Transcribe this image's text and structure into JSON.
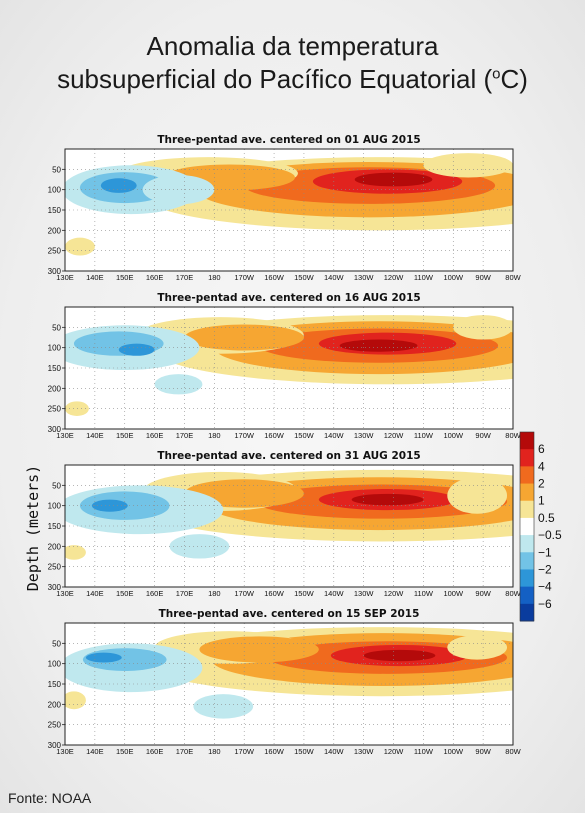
{
  "title_line1": "Anomalia da temperatura",
  "title_line2_prefix": "subsuperficial do Pacífico Equatorial (",
  "title_unit_sup": "o",
  "title_line2_suffix": "C)",
  "source": "Fonte: NOAA",
  "chart_data": {
    "type": "heatmap",
    "ylabel": "Depth (meters)",
    "y_ticks": [
      50,
      100,
      150,
      200,
      250,
      300
    ],
    "ylim": [
      300,
      0
    ],
    "x_ticks": [
      "130E",
      "140E",
      "150E",
      "160E",
      "170E",
      "180",
      "170W",
      "160W",
      "150W",
      "140W",
      "130W",
      "120W",
      "110W",
      "100W",
      "90W",
      "80W"
    ],
    "x_range_deg_east": [
      130,
      280
    ],
    "grid": "dotted",
    "colorbar": {
      "labels": [
        "6",
        "4",
        "2",
        "1",
        "0.5",
        "−0.5",
        "−1",
        "−2",
        "−4",
        "−6"
      ],
      "colors": [
        "#b40a0a",
        "#e1231e",
        "#f06a1e",
        "#f6a632",
        "#f6e596",
        "#ffffff",
        "#bfe8ee",
        "#72c3e6",
        "#2d96d8",
        "#1460c4",
        "#0a3c9e"
      ]
    },
    "panels": [
      {
        "title": "Three-pentad ave. centered on 01 AUG 2015",
        "blobs": [
          {
            "level": 1,
            "lon": 235,
            "depth": 110,
            "rlon": 80,
            "rdepth": 90
          },
          {
            "level": 2,
            "lon": 232,
            "depth": 100,
            "rlon": 58,
            "rdepth": 68
          },
          {
            "level": 3,
            "lon": 232,
            "depth": 90,
            "rlon": 42,
            "rdepth": 45
          },
          {
            "level": 4,
            "lon": 238,
            "depth": 80,
            "rlon": 25,
            "rdepth": 30
          },
          {
            "level": 5,
            "lon": 240,
            "depth": 75,
            "rlon": 13,
            "rdepth": 17
          },
          {
            "level": 1,
            "lon": 178,
            "depth": 60,
            "rlon": 30,
            "rdepth": 40
          },
          {
            "level": 2,
            "lon": 185,
            "depth": 70,
            "rlon": 22,
            "rdepth": 32
          },
          {
            "level": -1,
            "lon": 152,
            "depth": 100,
            "rlon": 23,
            "rdepth": 60
          },
          {
            "level": -2,
            "lon": 150,
            "depth": 95,
            "rlon": 15,
            "rdepth": 38
          },
          {
            "level": -3,
            "lon": 148,
            "depth": 90,
            "rlon": 6,
            "rdepth": 18
          },
          {
            "level": -1,
            "lon": 168,
            "depth": 100,
            "rlon": 12,
            "rdepth": 36
          },
          {
            "level": 1,
            "lon": 135,
            "depth": 240,
            "rlon": 5,
            "rdepth": 22
          },
          {
            "level": 1,
            "lon": 265,
            "depth": 40,
            "rlon": 15,
            "rdepth": 30
          }
        ]
      },
      {
        "title": "Three-pentad ave. centered on 16 AUG 2015",
        "blobs": [
          {
            "level": 1,
            "lon": 238,
            "depth": 105,
            "rlon": 78,
            "rdepth": 85
          },
          {
            "level": 2,
            "lon": 235,
            "depth": 100,
            "rlon": 55,
            "rdepth": 65
          },
          {
            "level": 3,
            "lon": 235,
            "depth": 95,
            "rlon": 40,
            "rdepth": 42
          },
          {
            "level": 4,
            "lon": 238,
            "depth": 90,
            "rlon": 23,
            "rdepth": 27
          },
          {
            "level": 5,
            "lon": 235,
            "depth": 95,
            "rlon": 13,
            "rdepth": 15
          },
          {
            "level": 1,
            "lon": 182,
            "depth": 70,
            "rlon": 28,
            "rdepth": 45
          },
          {
            "level": 2,
            "lon": 190,
            "depth": 75,
            "rlon": 20,
            "rdepth": 32
          },
          {
            "level": -1,
            "lon": 150,
            "depth": 100,
            "rlon": 25,
            "rdepth": 55
          },
          {
            "level": -2,
            "lon": 148,
            "depth": 90,
            "rlon": 15,
            "rdepth": 30
          },
          {
            "level": -3,
            "lon": 154,
            "depth": 105,
            "rlon": 6,
            "rdepth": 15
          },
          {
            "level": -1,
            "lon": 168,
            "depth": 190,
            "rlon": 8,
            "rdepth": 25
          },
          {
            "level": 1,
            "lon": 134,
            "depth": 250,
            "rlon": 4,
            "rdepth": 18
          },
          {
            "level": 1,
            "lon": 270,
            "depth": 50,
            "rlon": 10,
            "rdepth": 30
          }
        ]
      },
      {
        "title": "Three-pentad ave. centered on 31 AUG 2015",
        "blobs": [
          {
            "level": 1,
            "lon": 236,
            "depth": 100,
            "rlon": 82,
            "rdepth": 88
          },
          {
            "level": 2,
            "lon": 235,
            "depth": 95,
            "rlon": 58,
            "rdepth": 65
          },
          {
            "level": 3,
            "lon": 236,
            "depth": 90,
            "rlon": 42,
            "rdepth": 42
          },
          {
            "level": 4,
            "lon": 238,
            "depth": 85,
            "rlon": 23,
            "rdepth": 26
          },
          {
            "level": 5,
            "lon": 238,
            "depth": 85,
            "rlon": 12,
            "rdepth": 14
          },
          {
            "level": 1,
            "lon": 182,
            "depth": 65,
            "rlon": 26,
            "rdepth": 48
          },
          {
            "level": 2,
            "lon": 190,
            "depth": 70,
            "rlon": 20,
            "rdepth": 35
          },
          {
            "level": -1,
            "lon": 155,
            "depth": 110,
            "rlon": 28,
            "rdepth": 60
          },
          {
            "level": -2,
            "lon": 150,
            "depth": 100,
            "rlon": 15,
            "rdepth": 35
          },
          {
            "level": -3,
            "lon": 145,
            "depth": 100,
            "rlon": 6,
            "rdepth": 15
          },
          {
            "level": -1,
            "lon": 175,
            "depth": 200,
            "rlon": 10,
            "rdepth": 30
          },
          {
            "level": 1,
            "lon": 133,
            "depth": 215,
            "rlon": 4,
            "rdepth": 18
          },
          {
            "level": 1,
            "lon": 268,
            "depth": 75,
            "rlon": 10,
            "rdepth": 45
          }
        ]
      },
      {
        "title": "Three-pentad ave. centered on 15 SEP 2015",
        "blobs": [
          {
            "level": 1,
            "lon": 236,
            "depth": 95,
            "rlon": 80,
            "rdepth": 85
          },
          {
            "level": 2,
            "lon": 237,
            "depth": 90,
            "rlon": 58,
            "rdepth": 65
          },
          {
            "level": 3,
            "lon": 238,
            "depth": 85,
            "rlon": 40,
            "rdepth": 40
          },
          {
            "level": 4,
            "lon": 242,
            "depth": 80,
            "rlon": 23,
            "rdepth": 26
          },
          {
            "level": 5,
            "lon": 242,
            "depth": 80,
            "rlon": 12,
            "rdepth": 14
          },
          {
            "level": 1,
            "lon": 185,
            "depth": 60,
            "rlon": 25,
            "rdepth": 40
          },
          {
            "level": 2,
            "lon": 195,
            "depth": 65,
            "rlon": 20,
            "rdepth": 32
          },
          {
            "level": -1,
            "lon": 152,
            "depth": 110,
            "rlon": 24,
            "rdepth": 60
          },
          {
            "level": -2,
            "lon": 150,
            "depth": 90,
            "rlon": 14,
            "rdepth": 28
          },
          {
            "level": -3,
            "lon": 143,
            "depth": 85,
            "rlon": 6,
            "rdepth": 12
          },
          {
            "level": -1,
            "lon": 183,
            "depth": 205,
            "rlon": 10,
            "rdepth": 30
          },
          {
            "level": 1,
            "lon": 133,
            "depth": 190,
            "rlon": 4,
            "rdepth": 22
          },
          {
            "level": 1,
            "lon": 268,
            "depth": 60,
            "rlon": 10,
            "rdepth": 30
          }
        ]
      }
    ]
  }
}
